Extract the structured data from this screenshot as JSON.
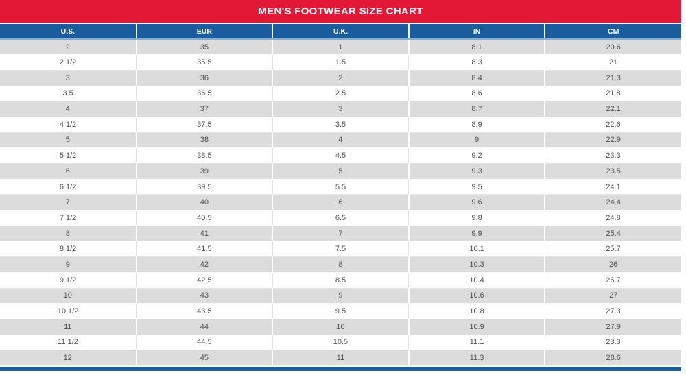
{
  "title": "MEN'S FOOTWEAR SIZE CHART",
  "colors": {
    "banner_red": "#e31837",
    "header_blue": "#1b5c9e",
    "accent_blue": "#7fb1d6",
    "row_gray": "#dcdcdc",
    "row_white": "#ffffff",
    "cell_text": "#4f4f4f"
  },
  "table": {
    "columns": [
      "U.S.",
      "EUR",
      "U.K.",
      "IN",
      "CM"
    ],
    "rows": [
      [
        "2",
        "35",
        "1",
        "8.1",
        "20.6"
      ],
      [
        "2 1/2",
        "35.5",
        "1.5",
        "8.3",
        "21"
      ],
      [
        "3",
        "36",
        "2",
        "8.4",
        "21.3"
      ],
      [
        "3.5",
        "36.5",
        "2.5",
        "8.6",
        "21.8"
      ],
      [
        "4",
        "37",
        "3",
        "8.7",
        "22.1"
      ],
      [
        "4 1/2",
        "37.5",
        "3.5",
        "8.9",
        "22.6"
      ],
      [
        "5",
        "38",
        "4",
        "9",
        "22.9"
      ],
      [
        "5 1/2",
        "38.5",
        "4.5",
        "9.2",
        "23.3"
      ],
      [
        "6",
        "39",
        "5",
        "9.3",
        "23.5"
      ],
      [
        "6 1/2",
        "39.5",
        "5.5",
        "9.5",
        "24.1"
      ],
      [
        "7",
        "40",
        "6",
        "9.6",
        "24.4"
      ],
      [
        "7 1/2",
        "40.5",
        "6.5",
        "9.8",
        "24.8"
      ],
      [
        "8",
        "41",
        "7",
        "9.9",
        "25.4"
      ],
      [
        "8 1/2",
        "41.5",
        "7.5",
        "10.1",
        "25.7"
      ],
      [
        "9",
        "42",
        "8",
        "10.3",
        "26"
      ],
      [
        "9 1/2",
        "42.5",
        "8.5",
        "10.4",
        "26.7"
      ],
      [
        "10",
        "43",
        "9",
        "10.6",
        "27"
      ],
      [
        "10 1/2",
        "43.5",
        "9.5",
        "10.8",
        "27.3"
      ],
      [
        "11",
        "44",
        "10",
        "10.9",
        "27.9"
      ],
      [
        "11 1/2",
        "44.5",
        "10.5",
        "11.1",
        "28.3"
      ],
      [
        "12",
        "45",
        "11",
        "11.3",
        "28.6"
      ]
    ]
  }
}
